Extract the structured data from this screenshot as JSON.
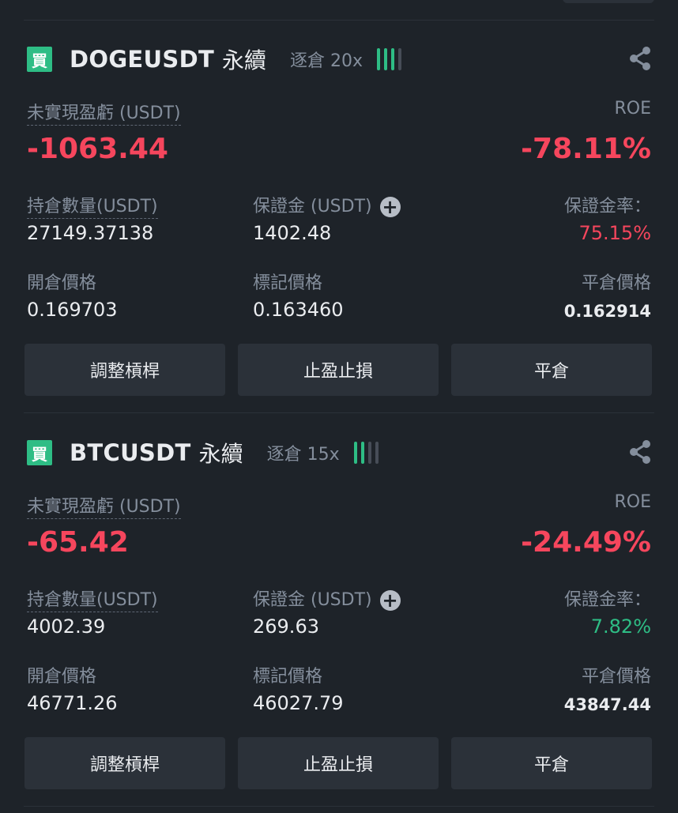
{
  "positions": [
    {
      "side_badge": "買",
      "symbol": "DOGEUSDT",
      "contract_type": "永續",
      "margin_mode": "逐倉 20x",
      "bars_active": 3,
      "bars_total": 4,
      "pnl_label": "未實現盈虧 (USDT)",
      "roe_label": "ROE",
      "pnl": "-1063.44",
      "roe": "-78.11%",
      "size_label": "持倉數量(USDT)",
      "size": "27149.37138",
      "margin_label": "保證金 (USDT)",
      "margin": "1402.48",
      "margin_ratio_label": "保證金率：",
      "margin_ratio": "75.15%",
      "margin_ratio_color": "#f6465d",
      "entry_label": "開倉價格",
      "entry": "0.169703",
      "mark_label": "標記價格",
      "mark": "0.163460",
      "liq_label": "平倉價格",
      "liq": "0.162914",
      "buttons": {
        "leverage": "調整槓桿",
        "tpsl": "止盈止損",
        "close": "平倉"
      }
    },
    {
      "side_badge": "買",
      "symbol": "BTCUSDT",
      "contract_type": "永續",
      "margin_mode": "逐倉 15x",
      "bars_active": 2,
      "bars_total": 4,
      "pnl_label": "未實現盈虧 (USDT)",
      "roe_label": "ROE",
      "pnl": "-65.42",
      "roe": "-24.49%",
      "size_label": "持倉數量(USDT)",
      "size": "4002.39",
      "margin_label": "保證金 (USDT)",
      "margin": "269.63",
      "margin_ratio_label": "保證金率：",
      "margin_ratio": "7.82%",
      "margin_ratio_color": "#2ebd85",
      "entry_label": "開倉價格",
      "entry": "46771.26",
      "mark_label": "標記價格",
      "mark": "46027.79",
      "liq_label": "平倉價格",
      "liq": "43847.44",
      "buttons": {
        "leverage": "調整槓桿",
        "tpsl": "止盈止損",
        "close": "平倉"
      }
    }
  ],
  "icons": {
    "share": "share-icon",
    "add_margin": "plus-circle-icon"
  },
  "colors": {
    "loss": "#f6465d",
    "profit": "#2ebd85",
    "background": "#1e2329",
    "button": "#2b3139"
  }
}
